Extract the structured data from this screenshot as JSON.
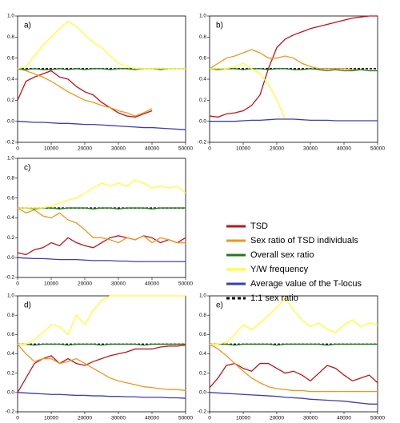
{
  "reference_line": {
    "name": "1:1 sex ratio",
    "value": 0.5,
    "color": "#000000"
  },
  "chart_data": [
    {
      "type": "line",
      "label": "a)",
      "xlim": [
        0,
        50000
      ],
      "xticks": [
        0,
        10000,
        20000,
        30000,
        40000,
        50000
      ],
      "ylim": [
        -0.2,
        1.0
      ],
      "yticks": [
        -0.2,
        {
          "value": 0,
          "label": "0.0"
        },
        0.2,
        0.4,
        0.6,
        0.8,
        {
          "value": 1,
          "label": "1.0"
        }
      ],
      "x": [
        0,
        2500,
        5000,
        7500,
        10000,
        12500,
        15000,
        17500,
        20000,
        22500,
        25000,
        27500,
        30000,
        32500,
        35000,
        37500,
        40000,
        42500,
        45000,
        47500,
        50000
      ],
      "series": [
        {
          "name": "TSD",
          "color": "#c0141e",
          "values": [
            0.2,
            0.38,
            0.42,
            0.45,
            0.48,
            0.42,
            0.4,
            0.33,
            0.28,
            0.25,
            0.18,
            0.13,
            0.08,
            0.05,
            0.04,
            0.07,
            0.1,
            null,
            null,
            null,
            null
          ]
        },
        {
          "name": "Sex ratio of TSD individuals",
          "color": "#f0961e",
          "values": [
            0.5,
            0.48,
            0.45,
            0.42,
            0.38,
            0.33,
            0.28,
            0.24,
            0.2,
            0.18,
            0.15,
            0.13,
            0.1,
            0.08,
            0.05,
            0.08,
            0.12,
            null,
            null,
            null,
            null
          ]
        },
        {
          "name": "Overall sex ratio",
          "color": "#1e7d1e",
          "values": [
            0.5,
            0.49,
            0.5,
            0.49,
            0.49,
            0.5,
            0.49,
            0.5,
            0.49,
            0.5,
            0.5,
            0.49,
            0.5,
            0.5,
            0.49,
            0.5,
            0.5,
            0.49,
            0.5,
            0.5,
            0.5
          ]
        },
        {
          "name": "Y/W frequency",
          "color": "#ffff32",
          "values": [
            0.5,
            0.52,
            0.62,
            0.72,
            0.8,
            0.88,
            0.95,
            0.9,
            0.82,
            0.75,
            0.7,
            0.62,
            0.55,
            0.52,
            0.5,
            0.5,
            0.5,
            0.5,
            0.5,
            0.5,
            0.5
          ]
        },
        {
          "name": "Average value of the T-locus",
          "color": "#3c3cb4",
          "values": [
            0,
            -0.005,
            -0.01,
            -0.01,
            -0.015,
            -0.02,
            -0.02,
            -0.025,
            -0.03,
            -0.03,
            -0.035,
            -0.04,
            -0.045,
            -0.05,
            -0.055,
            -0.06,
            -0.06,
            -0.065,
            -0.07,
            -0.075,
            -0.08
          ]
        }
      ]
    },
    {
      "type": "line",
      "label": "b)",
      "xlim": [
        0,
        50000
      ],
      "xticks": [
        0,
        10000,
        20000,
        30000,
        40000,
        50000
      ],
      "ylim": [
        -0.2,
        1.0
      ],
      "yticks": [
        -0.2,
        {
          "value": 0,
          "label": "0.0"
        },
        0.2,
        0.4,
        0.6,
        0.8,
        {
          "value": 1,
          "label": "1.0"
        }
      ],
      "x": [
        0,
        2500,
        5000,
        7500,
        10000,
        12500,
        15000,
        17500,
        20000,
        22500,
        25000,
        27500,
        30000,
        32500,
        35000,
        37500,
        40000,
        42500,
        45000,
        47500,
        50000
      ],
      "series": [
        {
          "name": "TSD",
          "color": "#c0141e",
          "values": [
            0.05,
            0.04,
            0.07,
            0.08,
            0.1,
            0.15,
            0.25,
            0.5,
            0.7,
            0.78,
            0.82,
            0.85,
            0.88,
            0.9,
            0.92,
            0.94,
            0.96,
            0.98,
            0.99,
            1.0,
            1.0
          ]
        },
        {
          "name": "Sex ratio of TSD individuals",
          "color": "#f0961e",
          "values": [
            0.5,
            0.55,
            0.6,
            0.62,
            0.65,
            0.68,
            0.65,
            0.6,
            0.6,
            0.62,
            0.6,
            0.55,
            0.52,
            0.5,
            0.5,
            0.5,
            0.5,
            0.49,
            0.49,
            0.48,
            0.48
          ]
        },
        {
          "name": "Overall sex ratio",
          "color": "#1e7d1e",
          "values": [
            0.5,
            0.49,
            0.5,
            0.5,
            0.49,
            0.5,
            0.5,
            0.49,
            0.5,
            0.5,
            0.49,
            0.49,
            0.5,
            0.49,
            0.48,
            0.49,
            0.48,
            0.48,
            0.49,
            0.48,
            0.48
          ]
        },
        {
          "name": "Y/W frequency",
          "color": "#ffff32",
          "values": [
            0.5,
            0.5,
            0.5,
            0.52,
            0.55,
            0.5,
            0.45,
            0.35,
            0.2,
            0.02,
            null,
            null,
            null,
            null,
            null,
            null,
            null,
            null,
            null,
            null,
            null
          ]
        },
        {
          "name": "Average value of the T-locus",
          "color": "#3c3cb4",
          "values": [
            0,
            0,
            0,
            0,
            0.005,
            0.01,
            0.01,
            0.015,
            0.02,
            0.02,
            0.02,
            0.015,
            0.01,
            0.01,
            0.01,
            0.005,
            0.005,
            0.005,
            0.005,
            0.005,
            0.005
          ]
        }
      ]
    },
    {
      "type": "line",
      "label": "c)",
      "xlim": [
        0,
        50000
      ],
      "xticks": [
        0,
        10000,
        20000,
        30000,
        40000,
        50000
      ],
      "ylim": [
        -0.2,
        1.0
      ],
      "yticks": [
        -0.2,
        {
          "value": 0,
          "label": "0.0"
        },
        0.2,
        0.4,
        0.6,
        0.8,
        {
          "value": 1,
          "label": "1.0"
        }
      ],
      "x": [
        0,
        2500,
        5000,
        7500,
        10000,
        12500,
        15000,
        17500,
        20000,
        22500,
        25000,
        27500,
        30000,
        32500,
        35000,
        37500,
        40000,
        42500,
        45000,
        47500,
        50000
      ],
      "series": [
        {
          "name": "TSD",
          "color": "#c0141e",
          "values": [
            0.05,
            0.03,
            0.08,
            0.1,
            0.15,
            0.12,
            0.2,
            0.15,
            0.12,
            0.1,
            0.15,
            0.2,
            0.22,
            0.2,
            0.18,
            0.22,
            0.2,
            0.15,
            0.18,
            0.15,
            0.2
          ]
        },
        {
          "name": "Sex ratio of TSD individuals",
          "color": "#f0961e",
          "values": [
            0.5,
            0.45,
            0.48,
            0.42,
            0.4,
            0.45,
            0.38,
            0.35,
            0.28,
            0.2,
            0.2,
            0.18,
            0.15,
            0.2,
            0.18,
            0.22,
            0.15,
            0.2,
            0.18,
            0.15,
            0.15
          ]
        },
        {
          "name": "Overall sex ratio",
          "color": "#1e7d1e",
          "values": [
            0.5,
            0.5,
            0.49,
            0.5,
            0.5,
            0.49,
            0.5,
            0.5,
            0.5,
            0.49,
            0.5,
            0.5,
            0.49,
            0.5,
            0.5,
            0.5,
            0.49,
            0.5,
            0.5,
            0.5,
            0.5
          ]
        },
        {
          "name": "Y/W frequency",
          "color": "#ffff32",
          "values": [
            0.5,
            0.5,
            0.5,
            0.5,
            0.52,
            0.55,
            0.58,
            0.6,
            0.65,
            0.7,
            0.75,
            0.72,
            0.75,
            0.72,
            0.78,
            0.75,
            0.7,
            0.72,
            0.7,
            0.72,
            0.65
          ]
        },
        {
          "name": "Average value of the T-locus",
          "color": "#3c3cb4",
          "values": [
            0,
            -0.005,
            -0.01,
            -0.01,
            -0.015,
            -0.02,
            -0.02,
            -0.02,
            -0.025,
            -0.03,
            -0.03,
            -0.03,
            -0.035,
            -0.035,
            -0.04,
            -0.04,
            -0.04,
            -0.04,
            -0.04,
            -0.04,
            -0.04
          ]
        }
      ]
    },
    {
      "type": "line",
      "label": "d)",
      "xlim": [
        0,
        50000
      ],
      "xticks": [
        0,
        10000,
        20000,
        30000,
        40000,
        50000
      ],
      "ylim": [
        -0.2,
        1.0
      ],
      "yticks": [
        -0.2,
        {
          "value": 0,
          "label": "0.0"
        },
        0.2,
        0.4,
        0.6,
        0.8,
        {
          "value": 1,
          "label": "1.0"
        }
      ],
      "x": [
        0,
        2500,
        5000,
        7500,
        10000,
        12500,
        15000,
        17500,
        20000,
        22500,
        25000,
        27500,
        30000,
        32500,
        35000,
        37500,
        40000,
        42500,
        45000,
        47500,
        50000
      ],
      "series": [
        {
          "name": "TSD",
          "color": "#c0141e",
          "values": [
            0.0,
            0.15,
            0.3,
            0.35,
            0.38,
            0.3,
            0.35,
            0.3,
            0.28,
            0.32,
            0.35,
            0.38,
            0.4,
            0.42,
            0.45,
            0.45,
            0.45,
            0.47,
            0.48,
            0.48,
            0.49
          ]
        },
        {
          "name": "Sex ratio of TSD individuals",
          "color": "#f0961e",
          "values": [
            0.5,
            0.4,
            0.32,
            0.35,
            0.35,
            0.3,
            0.32,
            0.35,
            0.3,
            0.25,
            0.2,
            0.15,
            0.12,
            0.1,
            0.08,
            0.06,
            0.05,
            0.04,
            0.03,
            0.03,
            0.02
          ]
        },
        {
          "name": "Overall sex ratio",
          "color": "#1e7d1e",
          "values": [
            0.5,
            0.5,
            0.49,
            0.5,
            0.5,
            0.5,
            0.49,
            0.5,
            0.5,
            0.5,
            0.49,
            0.5,
            0.5,
            0.5,
            0.5,
            0.49,
            0.5,
            0.5,
            0.5,
            0.5,
            0.5
          ]
        },
        {
          "name": "Y/W frequency",
          "color": "#ffff32",
          "values": [
            0.5,
            0.5,
            0.55,
            0.62,
            0.7,
            0.68,
            0.6,
            0.8,
            0.7,
            0.85,
            0.95,
            1.0,
            1.0,
            1.0,
            1.0,
            1.0,
            1.0,
            1.0,
            1.0,
            1.0,
            1.0
          ]
        },
        {
          "name": "Average value of the T-locus",
          "color": "#3c3cb4",
          "values": [
            0,
            -0.005,
            -0.01,
            -0.015,
            -0.02,
            -0.02,
            -0.025,
            -0.03,
            -0.03,
            -0.035,
            -0.035,
            -0.04,
            -0.04,
            -0.045,
            -0.045,
            -0.05,
            -0.05,
            -0.05,
            -0.055,
            -0.055,
            -0.06
          ]
        }
      ]
    },
    {
      "type": "line",
      "label": "e)",
      "xlim": [
        0,
        50000
      ],
      "xticks": [
        0,
        10000,
        20000,
        30000,
        40000,
        50000
      ],
      "ylim": [
        -0.2,
        1.0
      ],
      "yticks": [
        -0.2,
        {
          "value": 0,
          "label": "0.0"
        },
        0.2,
        0.4,
        0.6,
        0.8,
        {
          "value": 1,
          "label": "1.0"
        }
      ],
      "x": [
        0,
        2500,
        5000,
        7500,
        10000,
        12500,
        15000,
        17500,
        20000,
        22500,
        25000,
        27500,
        30000,
        32500,
        35000,
        37500,
        40000,
        42500,
        45000,
        47500,
        50000
      ],
      "series": [
        {
          "name": "TSD",
          "color": "#c0141e",
          "values": [
            0.05,
            0.15,
            0.28,
            0.3,
            0.25,
            0.22,
            0.3,
            0.3,
            0.25,
            0.2,
            0.22,
            0.18,
            0.12,
            0.2,
            0.28,
            0.25,
            0.18,
            0.12,
            0.15,
            0.18,
            0.1
          ]
        },
        {
          "name": "Sex ratio of TSD individuals",
          "color": "#f0961e",
          "values": [
            0.5,
            0.45,
            0.38,
            0.3,
            0.22,
            0.15,
            0.1,
            0.06,
            0.04,
            0.03,
            0.02,
            0.02,
            0.01,
            0.01,
            0.01,
            0.01,
            0.01,
            0.01,
            0.01,
            0.01,
            0.01
          ]
        },
        {
          "name": "Overall sex ratio",
          "color": "#1e7d1e",
          "values": [
            0.5,
            0.5,
            0.5,
            0.49,
            0.5,
            0.5,
            0.5,
            0.5,
            0.49,
            0.5,
            0.5,
            0.5,
            0.5,
            0.5,
            0.49,
            0.5,
            0.5,
            0.5,
            0.5,
            0.5,
            0.5
          ]
        },
        {
          "name": "Y/W frequency",
          "color": "#ffff32",
          "values": [
            0.5,
            0.5,
            0.52,
            0.6,
            0.7,
            0.65,
            0.72,
            0.8,
            0.88,
            0.98,
            0.85,
            0.75,
            0.68,
            0.72,
            0.65,
            0.62,
            0.7,
            0.75,
            0.68,
            0.72,
            0.7
          ]
        },
        {
          "name": "Average value of the T-locus",
          "color": "#3c3cb4",
          "values": [
            0,
            -0.005,
            -0.01,
            -0.015,
            -0.02,
            -0.025,
            -0.03,
            -0.035,
            -0.04,
            -0.05,
            -0.055,
            -0.06,
            -0.07,
            -0.075,
            -0.08,
            -0.085,
            -0.09,
            -0.1,
            -0.11,
            -0.12,
            -0.12
          ]
        }
      ]
    }
  ]
}
